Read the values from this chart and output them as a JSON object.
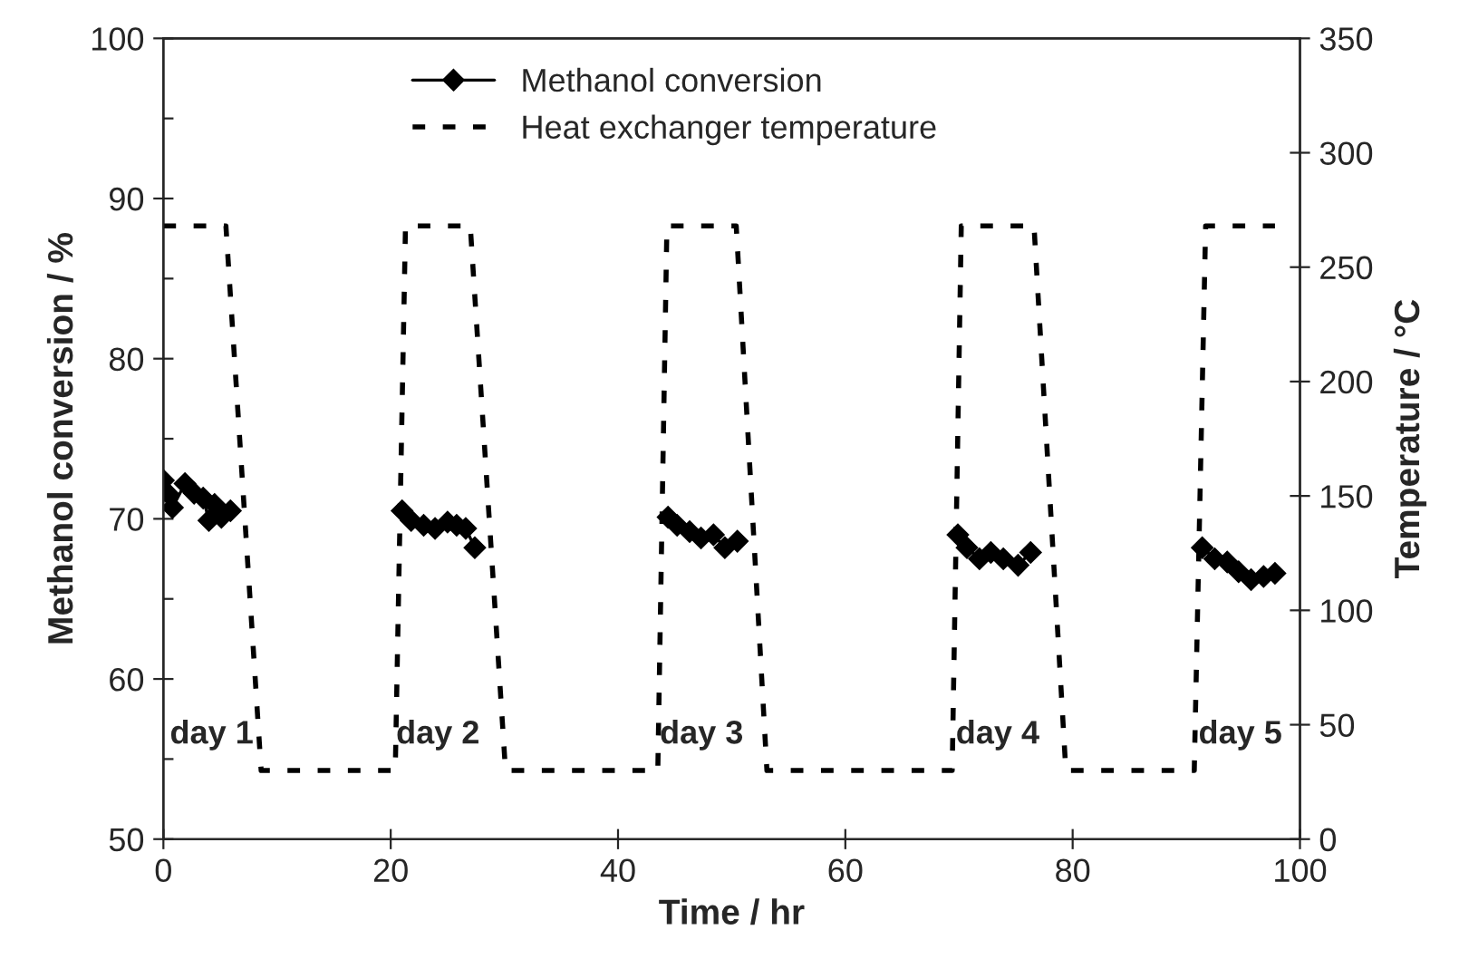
{
  "chart_data": {
    "type": "line",
    "xlabel": "Time / hr",
    "ylabel": "Methanol conversion / %",
    "y2label": "Temperature / °C",
    "xlim": [
      0,
      100
    ],
    "xticks": [
      0,
      20,
      40,
      60,
      80,
      100
    ],
    "ylim": [
      50,
      100
    ],
    "yticks": [
      50,
      {
        "value": 55,
        "label": null
      },
      60,
      {
        "value": 65,
        "label": null
      },
      70,
      {
        "value": 75,
        "label": null
      },
      80,
      {
        "value": 85,
        "label": null
      },
      90,
      {
        "value": 95,
        "label": null
      },
      100
    ],
    "y2lim": [
      0,
      350
    ],
    "y2ticks": [
      0,
      50,
      100,
      150,
      200,
      250,
      300,
      350
    ],
    "grid": false,
    "legend": "top",
    "series": [
      {
        "name": "Methanol conversion",
        "color": "#000000",
        "marker": "diamond",
        "line_style": "solid",
        "x": [
          0,
          0.5,
          0.8,
          1.9,
          2.7,
          3.5,
          4.0,
          4.5,
          5.1,
          5.9,
          13,
          21.0,
          21.8,
          22.9,
          23.9,
          25.0,
          25.8,
          26.6,
          27.4,
          36,
          44.4,
          45.2,
          46.3,
          47.3,
          48.4,
          49.4,
          50.5,
          60,
          69.9,
          70.7,
          71.8,
          72.8,
          73.9,
          75.2,
          76.3,
          84,
          91.4,
          92.5,
          93.6,
          94.6,
          95.7,
          96.8,
          97.8
        ],
        "values": [
          72.4,
          71.5,
          70.7,
          72.2,
          71.6,
          71.3,
          69.9,
          70.9,
          70.1,
          70.5,
          null,
          70.5,
          69.9,
          69.6,
          69.4,
          69.8,
          69.6,
          69.4,
          68.2,
          null,
          70.1,
          69.6,
          69.2,
          68.8,
          69.0,
          68.2,
          68.6,
          null,
          69.0,
          68.2,
          67.5,
          67.9,
          67.5,
          67.1,
          67.9,
          null,
          68.2,
          67.5,
          67.3,
          66.7,
          66.2,
          66.4,
          66.6
        ]
      },
      {
        "name": "Heat exchanger temperature",
        "color": "#000000",
        "axis": "y2",
        "line_style": "dashed",
        "marker": "none",
        "x": [
          0,
          5.5,
          8.6,
          20.4,
          21.3,
          27.0,
          30.1,
          43.5,
          44.3,
          50.4,
          53.1,
          69.4,
          70.2,
          76.6,
          79.4,
          90.7,
          91.7,
          97.8
        ],
        "values": [
          268,
          268,
          30,
          30,
          268,
          268,
          30,
          30,
          268,
          268,
          30,
          30,
          268,
          268,
          30,
          30,
          268,
          268
        ]
      }
    ],
    "annotations": [
      "day 1",
      "day 2",
      "day 3",
      "day 4",
      "day 5"
    ]
  }
}
